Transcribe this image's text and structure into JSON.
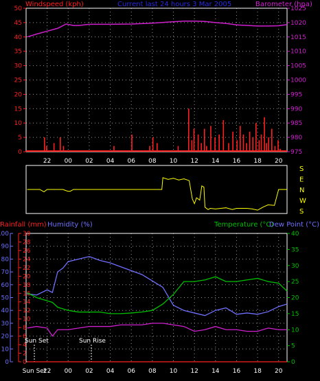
{
  "colors": {
    "windspeed": "#ff2020",
    "barometer": "#d020d0",
    "title": "#2a2adf",
    "wind_dir": "#ffff00",
    "rainfall": "#ff2020",
    "humidity": "#7070ff",
    "temperature": "#00c000",
    "dew_point": "#7070ff",
    "axis_white": "#ffffff",
    "grid": "#9a9a9a"
  },
  "chart_data": [
    {
      "type": "line",
      "panel": "wind-baro",
      "title": "Current last 24 hours 3 Mar 2005",
      "ylabel_left": "Windspeed (kph)",
      "ylabel_right": "Barometer (hpa)",
      "x_ticks": [
        "22",
        "00",
        "02",
        "04",
        "06",
        "08",
        "10",
        "12",
        "14",
        "16",
        "18",
        "20"
      ],
      "y_left_ticks": [
        "0",
        "5",
        "10",
        "15",
        "20",
        "25",
        "30",
        "35",
        "40",
        "45",
        "50"
      ],
      "y_right_ticks": [
        "975",
        "980",
        "985",
        "990",
        "995",
        "1000",
        "1005",
        "1010",
        "1015",
        "1020",
        "1025"
      ],
      "ylim_left": [
        0,
        50
      ],
      "ylim_right": [
        975,
        1025
      ],
      "grid": true,
      "series": [
        {
          "name": "Barometer",
          "x": [
            20.1,
            21,
            22,
            23,
            23.8,
            24.5,
            25,
            26,
            28,
            30,
            32,
            34,
            35,
            36,
            37,
            38,
            39,
            40,
            42,
            43,
            44,
            44.8
          ],
          "y": [
            1015,
            1016,
            1017,
            1018,
            1019.5,
            1019,
            1019,
            1019.4,
            1019.4,
            1019.5,
            1019.8,
            1020.3,
            1020.5,
            1020.5,
            1020.4,
            1020,
            1019.7,
            1019.2,
            1018.8,
            1018.8,
            1018.9,
            1019.3
          ]
        },
        {
          "name": "Windspeed",
          "x": [
            21.7,
            21.9,
            22.6,
            23.2,
            23.5,
            28.3,
            30.0,
            31.7,
            32.0,
            32.4,
            34.4,
            35.4,
            35.7,
            35.9,
            36.3,
            36.6,
            36.9,
            37.1,
            37.5,
            37.9,
            38.3,
            38.7,
            39.2,
            39.6,
            40.0,
            40.3,
            40.6,
            40.9,
            41.2,
            41.5,
            41.8,
            42.1,
            42.3,
            42.6,
            42.8,
            43.0,
            43.3,
            43.6,
            43.9,
            44.1
          ],
          "y": [
            5,
            2,
            3,
            5,
            2,
            2,
            6,
            2,
            5,
            3,
            2,
            15,
            4,
            8,
            6,
            3,
            8,
            2,
            9,
            5,
            6,
            11,
            3,
            7,
            4,
            9,
            6,
            3,
            7,
            5,
            10,
            4,
            6,
            12,
            3,
            5,
            8,
            2,
            4,
            1
          ]
        }
      ]
    },
    {
      "type": "line",
      "panel": "wind-direction",
      "y_labels": [
        "S",
        "E",
        "N",
        "W",
        "S"
      ],
      "series": [
        {
          "name": "Wind Direction",
          "x": [
            20.1,
            21.3,
            21.5,
            21.7,
            22,
            23.5,
            23.8,
            24.0,
            24.2,
            24.5,
            25,
            26,
            27,
            29,
            32.9,
            33.0,
            33.5,
            34,
            34.5,
            35,
            35.5,
            35.8,
            36.0,
            36.2,
            36.5,
            36.7,
            36.9,
            37.0,
            37.3,
            37.5,
            38.0,
            38.5,
            39.0,
            39.6,
            40,
            40.6,
            41,
            41.5,
            42,
            42.5,
            43,
            43.6,
            44.0,
            44.5,
            44.8
          ],
          "y": [
            180,
            180,
            170,
            160,
            180,
            180,
            170,
            165,
            165,
            180,
            180,
            180,
            180,
            180,
            180,
            280,
            265,
            275,
            260,
            270,
            255,
            100,
            60,
            110,
            90,
            210,
            200,
            30,
            10,
            20,
            15,
            20,
            25,
            10,
            20,
            20,
            20,
            15,
            5,
            30,
            50,
            45,
            180,
            180,
            180
          ]
        }
      ]
    },
    {
      "type": "line",
      "panel": "rain-hum-temp",
      "ylabel_left_a": "Rainfall (mm)",
      "ylabel_left_b": "Humidity (%)",
      "ylabel_right_a": "Temperature (°C)",
      "ylabel_right_b": "Dew Point (°C)",
      "x_ticks": [
        "Sun Set",
        "22",
        "00",
        "02",
        "04",
        "06",
        "08",
        "10",
        "12",
        "14",
        "16",
        "18",
        "20"
      ],
      "humidity_ticks": [
        "0",
        "10",
        "20",
        "30",
        "40",
        "50",
        "60",
        "70",
        "80",
        "90",
        "100"
      ],
      "rain_ticks": [
        "0",
        "2",
        "4",
        "6",
        "8",
        "10",
        "12",
        "14",
        "16",
        "18",
        "20",
        "22",
        "24",
        "26",
        "28",
        "30"
      ],
      "temp_ticks": [
        "0",
        "5",
        "10",
        "15",
        "20",
        "25",
        "30",
        "35",
        "40"
      ],
      "annotations": [
        "Sun Set",
        "Sun Rise"
      ],
      "ylim_humidity": [
        0,
        100
      ],
      "ylim_rain": [
        0,
        30
      ],
      "ylim_temp": [
        0,
        40
      ],
      "grid": true,
      "series": [
        {
          "name": "Humidity",
          "x": [
            20.1,
            21,
            22,
            22.5,
            23,
            23.5,
            24,
            25,
            26,
            27,
            28,
            29,
            30,
            31,
            32,
            33,
            34,
            35,
            36,
            37,
            38,
            39,
            40,
            41,
            42,
            43,
            44,
            44.8
          ],
          "y": [
            53,
            52,
            56,
            54,
            70,
            73,
            78,
            80,
            82,
            79,
            77,
            74,
            71,
            68,
            63,
            58,
            44,
            40,
            38,
            36,
            40,
            42,
            37,
            38,
            37,
            39,
            43,
            45
          ]
        },
        {
          "name": "Temperature",
          "x": [
            20.1,
            21,
            22,
            22.5,
            23,
            24,
            25,
            26,
            27,
            28,
            29,
            30,
            31,
            32,
            33,
            34,
            35,
            36,
            37,
            38,
            39,
            40,
            41,
            42,
            43,
            44,
            44.8
          ],
          "y": [
            21.5,
            20,
            19,
            18.5,
            17,
            16,
            15.5,
            15.5,
            15.5,
            15,
            15,
            15.2,
            15.5,
            16,
            18,
            21,
            25,
            25,
            25.5,
            26.5,
            25,
            25,
            25.5,
            26,
            25,
            24.5,
            22
          ]
        },
        {
          "name": "Dew Point",
          "x": [
            20.1,
            21,
            22,
            22.5,
            23,
            24,
            25,
            26,
            27,
            28,
            29,
            30,
            31,
            32,
            33,
            34,
            35,
            36,
            37,
            38,
            39,
            40,
            41,
            42,
            43,
            44,
            44.8
          ],
          "y": [
            10.5,
            11,
            10.5,
            8,
            10,
            10,
            10.5,
            11,
            11,
            11,
            11.5,
            11.5,
            11.5,
            12,
            12,
            11.5,
            11,
            9.5,
            10,
            11,
            10,
            10,
            9.5,
            9.5,
            10.5,
            10,
            10
          ]
        },
        {
          "name": "Rainfall",
          "x": [
            20.1,
            44.8
          ],
          "y": [
            0,
            0
          ]
        }
      ]
    }
  ]
}
